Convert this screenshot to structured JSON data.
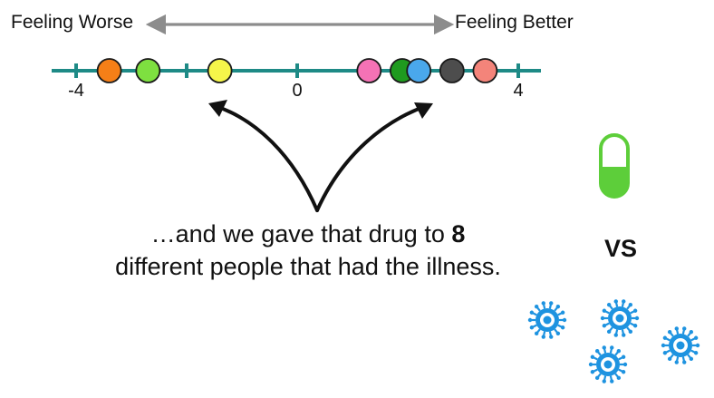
{
  "axis": {
    "left_label": "Feeling Worse",
    "right_label": "Feeling Better",
    "range": [
      -5.3,
      5.3
    ],
    "ticks": [
      -4,
      -2,
      0,
      2,
      4
    ],
    "tick_labels": [
      {
        "value": -4,
        "text": "-4"
      },
      {
        "value": 0,
        "text": "0"
      },
      {
        "value": 4,
        "text": "4"
      }
    ],
    "line_color": "#1e8a86",
    "arrow_color": "#8c8c8c"
  },
  "chart_data": {
    "type": "scatter",
    "x": [
      -3.4,
      -2.7,
      -1.4,
      1.3,
      1.9,
      2.2,
      2.8,
      3.4
    ],
    "colors": [
      "#f57f17",
      "#7ee040",
      "#f5f54a",
      "#f572b5",
      "#1f9a1f",
      "#4aa8ec",
      "#4d4d4d",
      "#f4847a"
    ],
    "point_count": 8
  },
  "caption": {
    "line1_prefix": "…and we gave that drug to ",
    "line1_bold": "8",
    "line2": "different people that had the illness."
  },
  "side_panel": {
    "vs_label": "VS",
    "pill_color": "#5dce3a",
    "germ_color": "#1e93e0",
    "germ_count": 4
  }
}
